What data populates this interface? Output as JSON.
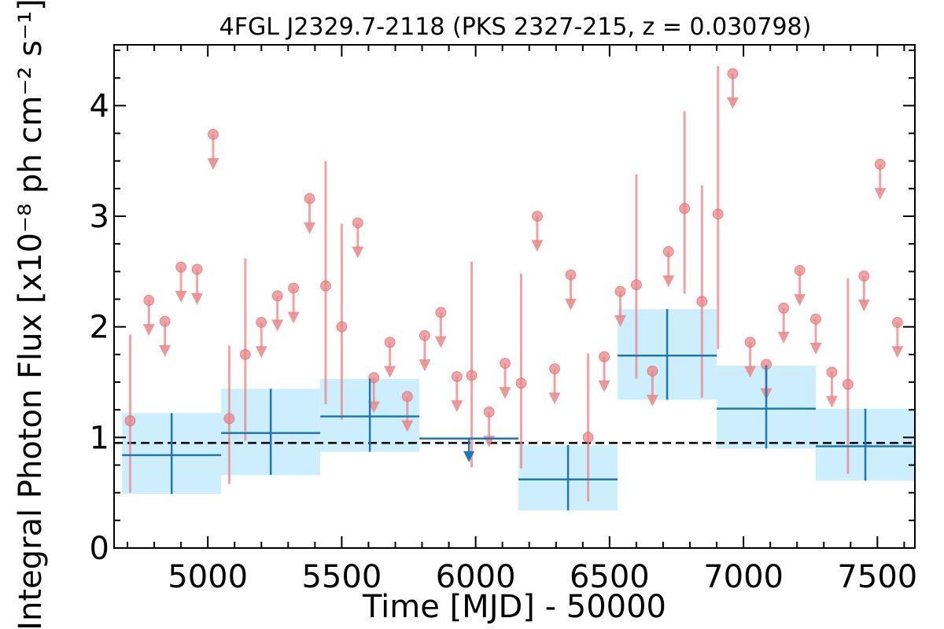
{
  "chart_data": {
    "type": "scatter",
    "title": "4FGL J2329.7-2118 (PKS 2327-215, z = 0.030798)",
    "xlabel": "Time [MJD] - 50000",
    "ylabel": "Integral Photon Flux [x10⁻⁸ ph cm⁻² s⁻¹]",
    "xlim": [
      4650,
      7640
    ],
    "ylim": [
      0,
      4.55
    ],
    "x_ticks": [
      5000,
      5500,
      6000,
      6500,
      7000,
      7500
    ],
    "x_tick_labels": [
      "5000",
      "5500",
      "6000",
      "6500",
      "7000",
      "7500"
    ],
    "y_ticks": [
      0,
      1,
      2,
      3,
      4
    ],
    "y_tick_labels": [
      "0",
      "1",
      "2",
      "3",
      "4"
    ],
    "grid": false,
    "colors": {
      "short_bin": "#e8868a",
      "long_bin": "#1f77b4",
      "long_bin_band": "#cdeefc",
      "average_line": "#000000"
    },
    "average_flux": 0.95,
    "series": [
      {
        "bin": "short",
        "detections": [
          {
            "x": 4710,
            "y": 1.15,
            "y_err": [
              0.5,
              1.93
            ]
          },
          {
            "x": 5080,
            "y": 1.17,
            "y_err": [
              0.58,
              1.83
            ]
          },
          {
            "x": 5140,
            "y": 1.75,
            "y_err": [
              0.97,
              2.62
            ]
          },
          {
            "x": 5440,
            "y": 2.37,
            "y_err": [
              1.3,
              3.5
            ]
          },
          {
            "x": 5500,
            "y": 2.0,
            "y_err": [
              1.16,
              2.93
            ]
          },
          {
            "x": 5985,
            "y": 1.56,
            "y_err": [
              0.73,
              2.59
            ]
          },
          {
            "x": 6170,
            "y": 1.49,
            "y_err": [
              0.72,
              2.48
            ]
          },
          {
            "x": 6420,
            "y": 1.0,
            "y_err": [
              0.42,
              1.76
            ]
          },
          {
            "x": 6600,
            "y": 2.38,
            "y_err": [
              1.53,
              3.38
            ]
          },
          {
            "x": 6780,
            "y": 3.07,
            "y_err": [
              2.3,
              3.95
            ]
          },
          {
            "x": 6845,
            "y": 2.23,
            "y_err": [
              1.36,
              3.28
            ]
          },
          {
            "x": 6905,
            "y": 3.02,
            "y_err": [
              1.8,
              4.36
            ]
          },
          {
            "x": 7390,
            "y": 1.48,
            "y_err": [
              0.67,
              2.44
            ]
          }
        ],
        "upper_limits": [
          {
            "x": 4780,
            "y": 2.24
          },
          {
            "x": 4840,
            "y": 2.05
          },
          {
            "x": 4900,
            "y": 2.54
          },
          {
            "x": 4960,
            "y": 2.52
          },
          {
            "x": 5020,
            "y": 3.74
          },
          {
            "x": 5200,
            "y": 2.04
          },
          {
            "x": 5260,
            "y": 2.28
          },
          {
            "x": 5320,
            "y": 2.35
          },
          {
            "x": 5380,
            "y": 3.16
          },
          {
            "x": 5560,
            "y": 2.94
          },
          {
            "x": 5620,
            "y": 1.54
          },
          {
            "x": 5680,
            "y": 1.86
          },
          {
            "x": 5745,
            "y": 1.37
          },
          {
            "x": 5810,
            "y": 1.92
          },
          {
            "x": 5870,
            "y": 2.13
          },
          {
            "x": 5930,
            "y": 1.55
          },
          {
            "x": 6050,
            "y": 1.23
          },
          {
            "x": 6110,
            "y": 1.67
          },
          {
            "x": 6230,
            "y": 3.0
          },
          {
            "x": 6295,
            "y": 1.62
          },
          {
            "x": 6355,
            "y": 2.47
          },
          {
            "x": 6480,
            "y": 1.73
          },
          {
            "x": 6540,
            "y": 2.32
          },
          {
            "x": 6660,
            "y": 1.6
          },
          {
            "x": 6720,
            "y": 2.68
          },
          {
            "x": 6960,
            "y": 4.29
          },
          {
            "x": 7025,
            "y": 1.86
          },
          {
            "x": 7085,
            "y": 1.66
          },
          {
            "x": 7150,
            "y": 2.17
          },
          {
            "x": 7210,
            "y": 2.51
          },
          {
            "x": 7270,
            "y": 2.07
          },
          {
            "x": 7330,
            "y": 1.59
          },
          {
            "x": 7450,
            "y": 2.46
          },
          {
            "x": 7510,
            "y": 3.47
          },
          {
            "x": 7575,
            "y": 2.04
          }
        ]
      },
      {
        "bin": "long",
        "detections": [
          {
            "x0": 4680,
            "x1": 5050,
            "y": 0.84,
            "y_err": [
              0.49,
              1.22
            ]
          },
          {
            "x0": 5050,
            "x1": 5420,
            "y": 1.04,
            "y_err": [
              0.66,
              1.44
            ]
          },
          {
            "x0": 5420,
            "x1": 5790,
            "y": 1.19,
            "y_err": [
              0.87,
              1.53
            ]
          },
          {
            "x0": 6160,
            "x1": 6530,
            "y": 0.62,
            "y_err": [
              0.34,
              0.93
            ]
          },
          {
            "x0": 6530,
            "x1": 6900,
            "y": 1.74,
            "y_err": [
              1.34,
              2.16
            ]
          },
          {
            "x0": 6900,
            "x1": 7270,
            "y": 1.26,
            "y_err": [
              0.9,
              1.65
            ]
          },
          {
            "x0": 7270,
            "x1": 7640,
            "y": 0.92,
            "y_err": [
              0.61,
              1.26
            ]
          }
        ],
        "upper_limits": [
          {
            "x0": 5790,
            "x1": 6160,
            "y": 0.99
          }
        ]
      }
    ]
  }
}
